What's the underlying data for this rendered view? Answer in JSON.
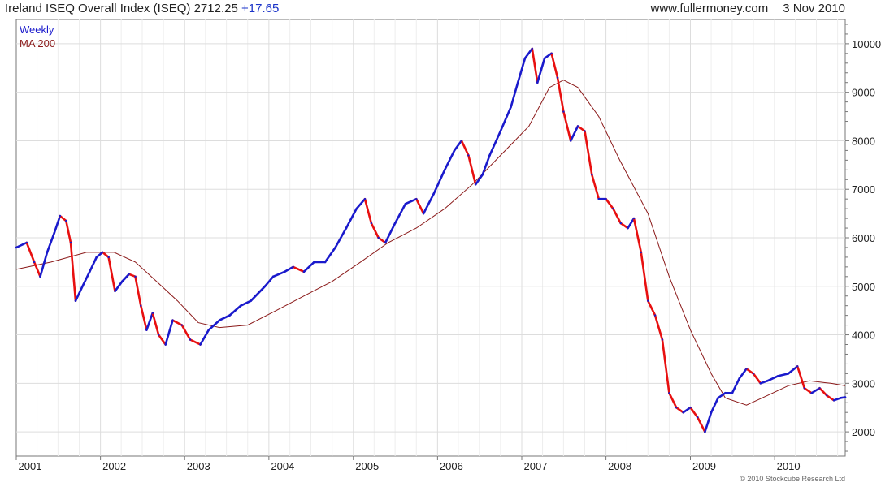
{
  "header": {
    "title": "Ireland ISEQ Overall Index (ISEQ)",
    "last": "2712.25",
    "change": "+17.65",
    "source": "www.fullermoney.com",
    "date": "3 Nov 2010"
  },
  "legend": {
    "series1": "Weekly",
    "series2": "MA 200"
  },
  "copyright": "© 2010 Stockcube Research Ltd",
  "colors": {
    "up": "#1a1acc",
    "down": "#e81010",
    "ma": "#8b1a1a",
    "grid": "#dddddd",
    "frame": "#777777"
  },
  "chart_data": {
    "type": "line",
    "title": "Ireland ISEQ Overall Index (ISEQ)",
    "frequency": "Weekly",
    "x_range": [
      "2001-01-01",
      "2010-11-03"
    ],
    "x_ticks": [
      "2001",
      "2002",
      "2003",
      "2004",
      "2005",
      "2006",
      "2007",
      "2008",
      "2009",
      "2010"
    ],
    "ylim": [
      1500,
      10500
    ],
    "y_ticks": [
      2000,
      3000,
      4000,
      5000,
      6000,
      7000,
      8000,
      9000,
      10000
    ],
    "y_axis_side": "right",
    "grid": true,
    "legend_position": "top-left",
    "series": [
      {
        "name": "Weekly",
        "style": "bars colored blue when rising, red when falling",
        "points": [
          [
            "2001-01-01",
            5800
          ],
          [
            "2001-02-15",
            5900
          ],
          [
            "2001-03-20",
            5500
          ],
          [
            "2001-04-15",
            5200
          ],
          [
            "2001-05-15",
            5700
          ],
          [
            "2001-06-15",
            6100
          ],
          [
            "2001-07-10",
            6450
          ],
          [
            "2001-08-05",
            6350
          ],
          [
            "2001-08-25",
            5900
          ],
          [
            "2001-09-15",
            4700
          ],
          [
            "2001-10-15",
            5000
          ],
          [
            "2001-11-15",
            5300
          ],
          [
            "2001-12-15",
            5600
          ],
          [
            "2002-01-10",
            5700
          ],
          [
            "2002-02-05",
            5600
          ],
          [
            "2002-03-05",
            4900
          ],
          [
            "2002-04-05",
            5100
          ],
          [
            "2002-05-05",
            5250
          ],
          [
            "2002-06-01",
            5200
          ],
          [
            "2002-06-25",
            4600
          ],
          [
            "2002-07-20",
            4100
          ],
          [
            "2002-08-15",
            4450
          ],
          [
            "2002-09-10",
            4000
          ],
          [
            "2002-10-10",
            3800
          ],
          [
            "2002-11-10",
            4300
          ],
          [
            "2002-12-20",
            4200
          ],
          [
            "2003-01-25",
            3900
          ],
          [
            "2003-03-10",
            3800
          ],
          [
            "2003-04-15",
            4100
          ],
          [
            "2003-06-01",
            4300
          ],
          [
            "2003-07-15",
            4400
          ],
          [
            "2003-09-01",
            4600
          ],
          [
            "2003-10-15",
            4700
          ],
          [
            "2003-12-15",
            5000
          ],
          [
            "2004-01-20",
            5200
          ],
          [
            "2004-03-10",
            5300
          ],
          [
            "2004-04-15",
            5400
          ],
          [
            "2004-06-01",
            5300
          ],
          [
            "2004-07-15",
            5500
          ],
          [
            "2004-09-01",
            5500
          ],
          [
            "2004-10-15",
            5800
          ],
          [
            "2004-12-01",
            6200
          ],
          [
            "2005-01-15",
            6600
          ],
          [
            "2005-02-20",
            6800
          ],
          [
            "2005-03-20",
            6300
          ],
          [
            "2005-04-20",
            6000
          ],
          [
            "2005-05-20",
            5900
          ],
          [
            "2005-07-01",
            6300
          ],
          [
            "2005-08-15",
            6700
          ],
          [
            "2005-10-01",
            6800
          ],
          [
            "2005-11-01",
            6500
          ],
          [
            "2005-12-15",
            6900
          ],
          [
            "2006-02-01",
            7400
          ],
          [
            "2006-03-15",
            7800
          ],
          [
            "2006-04-15",
            8000
          ],
          [
            "2006-05-15",
            7700
          ],
          [
            "2006-06-15",
            7100
          ],
          [
            "2006-07-15",
            7300
          ],
          [
            "2006-08-15",
            7700
          ],
          [
            "2006-10-01",
            8200
          ],
          [
            "2006-11-15",
            8700
          ],
          [
            "2006-12-15",
            9200
          ],
          [
            "2007-01-15",
            9700
          ],
          [
            "2007-02-15",
            9900
          ],
          [
            "2007-03-10",
            9200
          ],
          [
            "2007-04-10",
            9700
          ],
          [
            "2007-05-10",
            9800
          ],
          [
            "2007-06-05",
            9300
          ],
          [
            "2007-07-01",
            8600
          ],
          [
            "2007-08-01",
            8000
          ],
          [
            "2007-09-01",
            8300
          ],
          [
            "2007-10-01",
            8200
          ],
          [
            "2007-11-01",
            7300
          ],
          [
            "2007-12-01",
            6800
          ],
          [
            "2008-01-01",
            6800
          ],
          [
            "2008-02-01",
            6600
          ],
          [
            "2008-03-05",
            6300
          ],
          [
            "2008-04-05",
            6200
          ],
          [
            "2008-05-01",
            6400
          ],
          [
            "2008-06-01",
            5700
          ],
          [
            "2008-07-01",
            4700
          ],
          [
            "2008-08-01",
            4400
          ],
          [
            "2008-09-01",
            3900
          ],
          [
            "2008-10-01",
            2800
          ],
          [
            "2008-11-01",
            2500
          ],
          [
            "2008-12-01",
            2400
          ],
          [
            "2009-01-01",
            2500
          ],
          [
            "2009-02-01",
            2300
          ],
          [
            "2009-03-05",
            2000
          ],
          [
            "2009-04-01",
            2400
          ],
          [
            "2009-05-01",
            2700
          ],
          [
            "2009-06-01",
            2800
          ],
          [
            "2009-07-01",
            2800
          ],
          [
            "2009-08-01",
            3100
          ],
          [
            "2009-09-01",
            3300
          ],
          [
            "2009-10-01",
            3200
          ],
          [
            "2009-11-01",
            3000
          ],
          [
            "2009-12-01",
            3050
          ],
          [
            "2010-01-15",
            3150
          ],
          [
            "2010-03-01",
            3200
          ],
          [
            "2010-04-10",
            3350
          ],
          [
            "2010-05-10",
            2900
          ],
          [
            "2010-06-10",
            2800
          ],
          [
            "2010-07-15",
            2900
          ],
          [
            "2010-08-15",
            2750
          ],
          [
            "2010-09-15",
            2650
          ],
          [
            "2010-10-15",
            2700
          ],
          [
            "2010-11-03",
            2712
          ]
        ]
      },
      {
        "name": "MA 200",
        "style": "thin dark red line",
        "points": [
          [
            "2001-01-01",
            5350
          ],
          [
            "2001-06-01",
            5500
          ],
          [
            "2001-11-01",
            5700
          ],
          [
            "2002-03-01",
            5700
          ],
          [
            "2002-06-01",
            5500
          ],
          [
            "2002-09-01",
            5100
          ],
          [
            "2002-12-01",
            4700
          ],
          [
            "2003-03-01",
            4250
          ],
          [
            "2003-06-01",
            4150
          ],
          [
            "2003-10-01",
            4200
          ],
          [
            "2004-02-01",
            4500
          ],
          [
            "2004-06-01",
            4800
          ],
          [
            "2004-10-01",
            5100
          ],
          [
            "2005-02-01",
            5500
          ],
          [
            "2005-06-01",
            5900
          ],
          [
            "2005-10-01",
            6200
          ],
          [
            "2006-02-01",
            6600
          ],
          [
            "2006-06-01",
            7100
          ],
          [
            "2006-10-01",
            7700
          ],
          [
            "2007-02-01",
            8300
          ],
          [
            "2007-05-01",
            9100
          ],
          [
            "2007-07-01",
            9250
          ],
          [
            "2007-09-01",
            9100
          ],
          [
            "2007-12-01",
            8500
          ],
          [
            "2008-03-01",
            7600
          ],
          [
            "2008-07-01",
            6500
          ],
          [
            "2008-10-01",
            5200
          ],
          [
            "2009-01-01",
            4100
          ],
          [
            "2009-04-01",
            3200
          ],
          [
            "2009-06-01",
            2700
          ],
          [
            "2009-09-01",
            2550
          ],
          [
            "2009-12-01",
            2750
          ],
          [
            "2010-03-01",
            2950
          ],
          [
            "2010-06-01",
            3050
          ],
          [
            "2010-09-01",
            3000
          ],
          [
            "2010-11-03",
            2950
          ]
        ]
      }
    ]
  }
}
